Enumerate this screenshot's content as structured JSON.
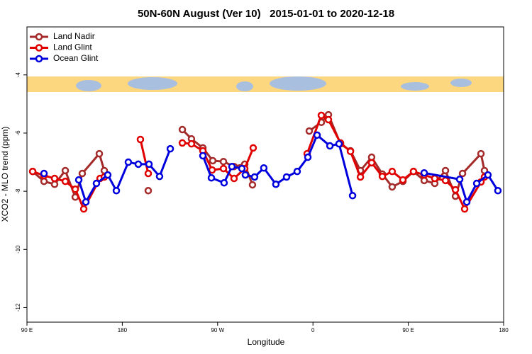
{
  "chart_data": {
    "type": "line",
    "title": "50N-60N August (Ver 10)   2015-01-01 to 2020-12-18",
    "x_label": "Longitude",
    "y_label": "XCO2 - MLO trend (ppm)",
    "xlim": [
      90,
      540
    ],
    "xticks": [
      {
        "value": 90,
        "label": "90 E"
      },
      {
        "value": 180,
        "label": "180"
      },
      {
        "value": 270,
        "label": "90 W"
      },
      {
        "value": 360,
        "label": "0"
      },
      {
        "value": 450,
        "label": "90 E"
      },
      {
        "value": 540,
        "label": "180"
      }
    ],
    "ylim": [
      -12.5,
      -2.35
    ],
    "yticks": [
      -12,
      -10,
      -8,
      -6,
      -4
    ],
    "legend": "upper left",
    "series": [
      {
        "name": "Land Nadir",
        "color": "#a52a2a",
        "x": [
          95.4,
          106.1,
          116.1,
          126.2,
          135.6,
          142.2,
          158.3,
          163.0,
          null,
          204.5,
          null,
          236.7,
          245.3,
          256.1,
          265.4,
          275.5,
          285.5,
          295.6,
          302.9,
          null,
          356.5,
          367.9,
          374.6,
          386.0,
          395.4,
          404.8,
          415.4,
          425.5,
          434.8,
          444.9,
          454.9,
          465.0,
          475.0,
          485.1,
          494.5,
          501.2,
          518.6,
          521.9
        ],
        "values": [
          -7.32,
          -7.66,
          -7.76,
          -7.29,
          -8.2,
          -7.39,
          -6.71,
          -7.29,
          null,
          -7.98,
          null,
          -5.88,
          -6.2,
          -6.51,
          -6.95,
          -6.98,
          -7.15,
          -7.07,
          -7.78,
          null,
          -5.93,
          -5.63,
          -5.37,
          -6.37,
          -6.61,
          -7.29,
          -6.83,
          -7.41,
          -7.85,
          -7.66,
          -7.32,
          -7.63,
          -7.73,
          -7.29,
          -8.17,
          -7.39,
          -6.71,
          -7.29
        ]
      },
      {
        "name": "Land Glint",
        "color": "#e00000",
        "x": [
          95.4,
          106.1,
          116.1,
          126.2,
          135.6,
          143.6,
          159.0,
          163.0,
          null,
          197.1,
          204.5,
          null,
          236.7,
          245.3,
          256.1,
          264.8,
          275.5,
          285.5,
          295.6,
          303.6,
          null,
          354.5,
          367.9,
          374.6,
          386.0,
          395.4,
          404.8,
          415.4,
          425.5,
          434.8,
          444.9,
          454.9,
          465.0,
          475.0,
          485.1,
          494.5,
          503.2,
          518.6,
          521.9
        ],
        "values": [
          -7.32,
          -7.46,
          -7.56,
          -7.66,
          -7.93,
          -8.61,
          -7.56,
          -7.51,
          null,
          -6.22,
          -7.39,
          null,
          -6.34,
          -6.37,
          -6.61,
          -7.27,
          -7.22,
          -7.56,
          -7.22,
          -6.51,
          null,
          -6.71,
          -5.39,
          -5.54,
          -6.34,
          -6.63,
          -7.51,
          -7.02,
          -7.49,
          -7.32,
          -7.61,
          -7.32,
          -7.44,
          -7.56,
          -7.63,
          -7.95,
          -8.61,
          -7.68,
          -7.51
        ]
      },
      {
        "name": "Ocean Glint",
        "color": "#0000dd",
        "x": [
          106.1,
          null,
          138.9,
          145.6,
          155.6,
          166.3,
          174.4,
          185.7,
          195.1,
          205.2,
          215.2,
          225.3,
          null,
          256.1,
          264.1,
          276.1,
          283.5,
          292.9,
          296.2,
          304.9,
          313.6,
          325.0,
          335.1,
          345.1,
          355.2,
          363.9,
          376.0,
          384.6,
          397.4,
          null,
          465.0,
          498.5,
          505.2,
          514.6,
          525.2,
          534.6
        ],
        "values": [
          -7.39,
          null,
          -7.61,
          -8.37,
          -7.73,
          -7.44,
          -7.98,
          -7.0,
          -7.07,
          -7.07,
          -7.49,
          -6.54,
          null,
          -6.78,
          -7.54,
          -7.71,
          -7.15,
          -7.22,
          -7.44,
          -7.51,
          -7.2,
          -7.76,
          -7.51,
          -7.32,
          -6.83,
          -6.07,
          -6.44,
          -6.37,
          -8.15,
          null,
          -7.37,
          -7.59,
          -8.37,
          -7.73,
          -7.44,
          -7.98
        ]
      }
    ]
  }
}
